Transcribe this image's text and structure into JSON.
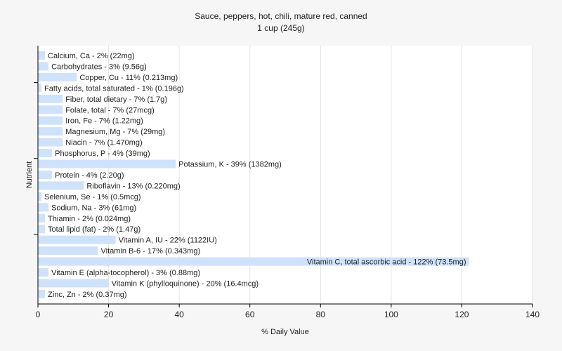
{
  "chart_data": {
    "type": "bar",
    "orientation": "horizontal",
    "title": "Sauce, peppers, hot, chili, mature red, canned",
    "subtitle": "1 cup (245g)",
    "xlabel": "% Daily Value",
    "ylabel": "Nutrient",
    "xlim": [
      0,
      140
    ],
    "xticks": [
      0,
      20,
      40,
      60,
      80,
      100,
      120,
      140
    ],
    "grid": true,
    "bar_color": "#cfe2fb",
    "categories": [
      "Calcium, Ca",
      "Carbohydrates",
      "Copper, Cu",
      "Fatty acids, total saturated",
      "Fiber, total dietary",
      "Folate, total",
      "Iron, Fe",
      "Magnesium, Mg",
      "Niacin",
      "Phosphorus, P",
      "Potassium, K",
      "Protein",
      "Riboflavin",
      "Selenium, Se",
      "Sodium, Na",
      "Thiamin",
      "Total lipid (fat)",
      "Vitamin A, IU",
      "Vitamin B-6",
      "Vitamin C, total ascorbic acid",
      "Vitamin E (alpha-tocopherol)",
      "Vitamin K (phylloquinone)",
      "Zinc, Zn"
    ],
    "values": [
      2,
      3,
      11,
      1,
      7,
      7,
      7,
      7,
      7,
      4,
      39,
      4,
      13,
      1,
      3,
      2,
      2,
      22,
      17,
      122,
      3,
      20,
      2
    ],
    "labels": [
      "Calcium, Ca - 2% (22mg)",
      "Carbohydrates - 3% (9.56g)",
      "Copper, Cu - 11% (0.213mg)",
      "Fatty acids, total saturated - 1% (0.196g)",
      "Fiber, total dietary - 7% (1.7g)",
      "Folate, total - 7% (27mcg)",
      "Iron, Fe - 7% (1.22mg)",
      "Magnesium, Mg - 7% (29mg)",
      "Niacin - 7% (1.470mg)",
      "Phosphorus, P - 4% (39mg)",
      "Potassium, K - 39% (1382mg)",
      "Protein - 4% (2.20g)",
      "Riboflavin - 13% (0.220mg)",
      "Selenium, Se - 1% (0.5mcg)",
      "Sodium, Na - 3% (61mg)",
      "Thiamin - 2% (0.024mg)",
      "Total lipid (fat) - 2% (1.47g)",
      "Vitamin A, IU - 22% (1122IU)",
      "Vitamin B-6 - 17% (0.343mg)",
      "Vitamin C, total ascorbic acid - 122% (73.5mg)",
      "Vitamin E (alpha-tocopherol) - 3% (0.88mg)",
      "Vitamin K (phylloquinone) - 20% (16.4mcg)",
      "Zinc, Zn - 2% (0.37mg)"
    ]
  }
}
